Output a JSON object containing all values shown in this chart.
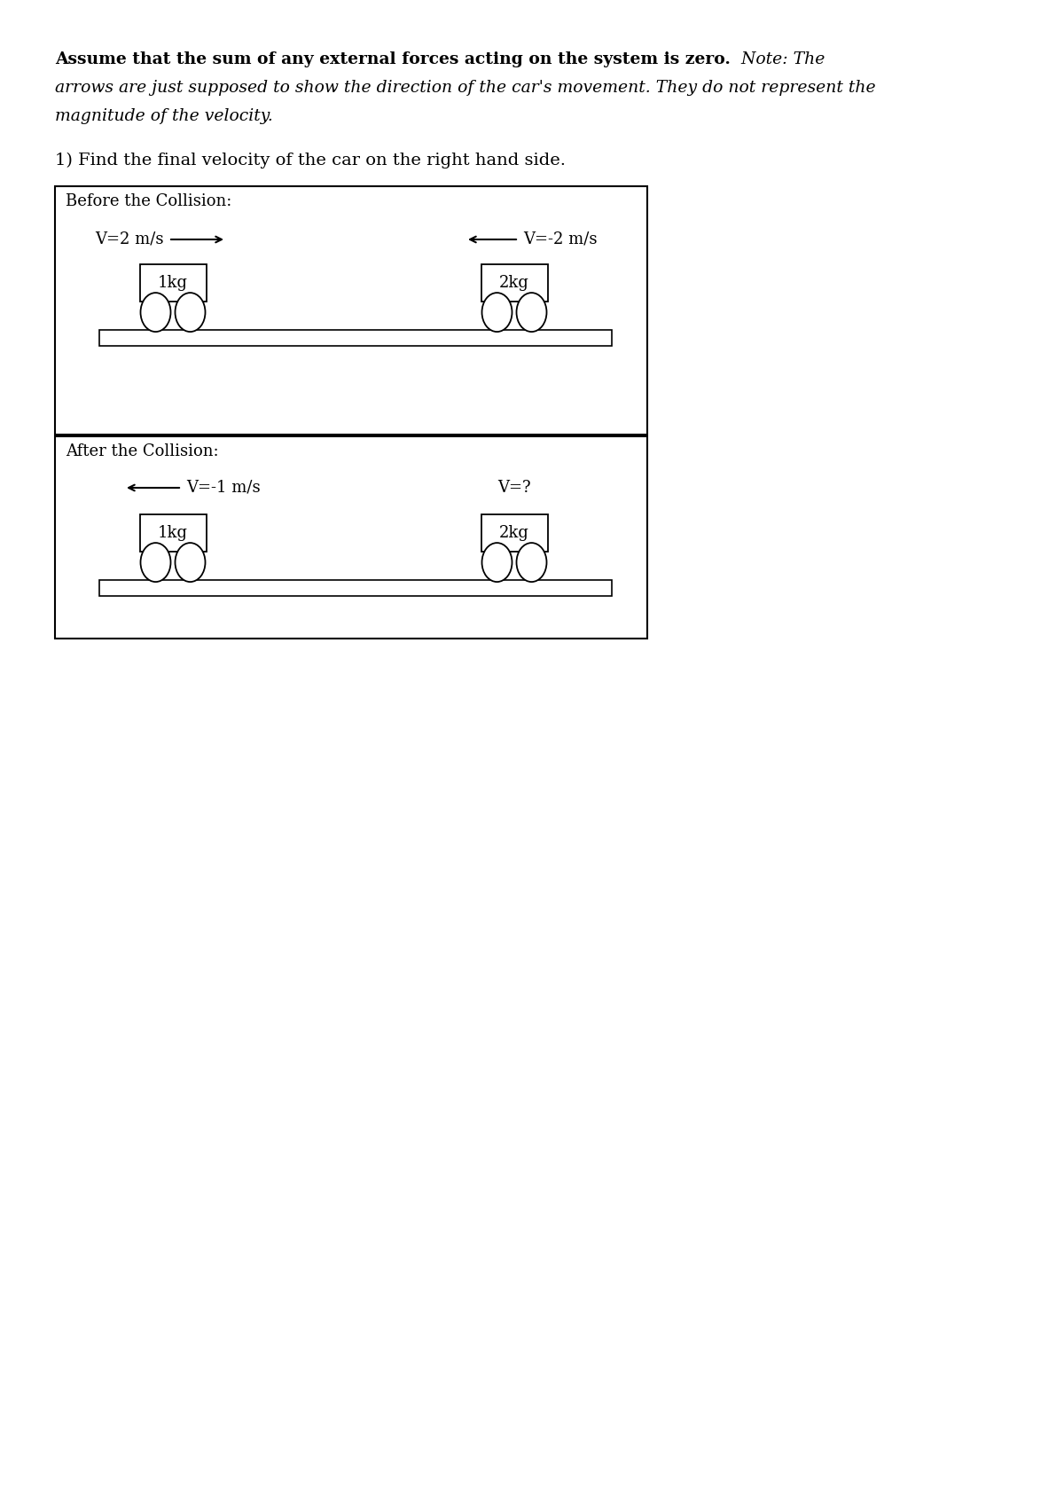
{
  "bg_color": "#ffffff",
  "text_color": "#000000",
  "page_width": 12.0,
  "page_height": 16.97,
  "title_bold": "Assume that the sum of any external forces acting on the system is zero.",
  "title_italic_note": "Note: The",
  "title_italic_line2": "arrows are just supposed to show the direction of the car’s movement. They do not represent the",
  "title_italic_line3": "magnitude of the velocity.",
  "question": "1) Find the final velocity of the car on the right hand side.",
  "before_label": "Before the Collision:",
  "after_label": "After the Collision:",
  "before_left_vel": "V=2 m/s",
  "before_left_mass": "1kg",
  "before_right_vel": "V=-2 m/s",
  "before_right_mass": "2kg",
  "after_left_vel": "V=-1 m/s",
  "after_left_mass": "1kg",
  "after_right_vel": "V=?",
  "after_right_mass": "2kg"
}
